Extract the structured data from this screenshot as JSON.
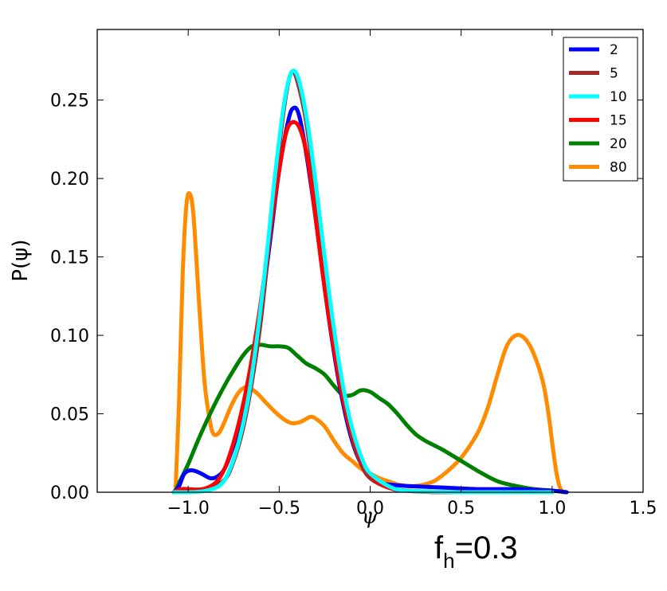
{
  "chart_data": {
    "type": "line",
    "xlabel": "ψ",
    "ylabel": "P(ψ)",
    "xlim": [
      -1.5,
      1.5
    ],
    "ylim": [
      0.0,
      0.295
    ],
    "xticks": [
      -1.0,
      -0.5,
      0.0,
      0.5,
      1.0,
      1.5
    ],
    "xtick_labels": [
      "−1.0",
      "−0.5",
      "0.0",
      "0.5",
      "1.0",
      "1.5"
    ],
    "yticks": [
      0.0,
      0.05,
      0.1,
      0.15,
      0.2,
      0.25
    ],
    "ytick_labels": [
      "0.00",
      "0.05",
      "0.10",
      "0.15",
      "0.20",
      "0.25"
    ],
    "grid": false,
    "legend_position": "top-right",
    "annotation": {
      "main": "f",
      "sub": "h",
      "rest": "=0.3"
    },
    "series": [
      {
        "name": "2",
        "color": "#0000ff",
        "points": [
          [
            -1.08,
            0.0
          ],
          [
            -1.05,
            0.004
          ],
          [
            -1.02,
            0.012
          ],
          [
            -0.98,
            0.014
          ],
          [
            -0.93,
            0.012
          ],
          [
            -0.88,
            0.009
          ],
          [
            -0.84,
            0.01
          ],
          [
            -0.8,
            0.015
          ],
          [
            -0.75,
            0.03
          ],
          [
            -0.7,
            0.05
          ],
          [
            -0.65,
            0.08
          ],
          [
            -0.6,
            0.115
          ],
          [
            -0.55,
            0.16
          ],
          [
            -0.5,
            0.205
          ],
          [
            -0.45,
            0.237
          ],
          [
            -0.42,
            0.245
          ],
          [
            -0.39,
            0.24
          ],
          [
            -0.35,
            0.215
          ],
          [
            -0.3,
            0.175
          ],
          [
            -0.25,
            0.13
          ],
          [
            -0.2,
            0.09
          ],
          [
            -0.15,
            0.057
          ],
          [
            -0.1,
            0.033
          ],
          [
            -0.05,
            0.018
          ],
          [
            0.0,
            0.01
          ],
          [
            0.05,
            0.006
          ],
          [
            0.1,
            0.005
          ],
          [
            0.2,
            0.004
          ],
          [
            0.4,
            0.003
          ],
          [
            0.6,
            0.002
          ],
          [
            0.8,
            0.002
          ],
          [
            1.0,
            0.001
          ],
          [
            1.08,
            0.0
          ]
        ]
      },
      {
        "name": "5",
        "color": "#a52a2a",
        "points": [
          [
            -1.08,
            0.0
          ],
          [
            -1.0,
            0.0
          ],
          [
            -0.9,
            0.002
          ],
          [
            -0.8,
            0.008
          ],
          [
            -0.75,
            0.02
          ],
          [
            -0.7,
            0.04
          ],
          [
            -0.65,
            0.07
          ],
          [
            -0.6,
            0.11
          ],
          [
            -0.55,
            0.165
          ],
          [
            -0.5,
            0.22
          ],
          [
            -0.46,
            0.255
          ],
          [
            -0.43,
            0.268
          ],
          [
            -0.4,
            0.262
          ],
          [
            -0.35,
            0.235
          ],
          [
            -0.3,
            0.19
          ],
          [
            -0.25,
            0.14
          ],
          [
            -0.2,
            0.095
          ],
          [
            -0.15,
            0.06
          ],
          [
            -0.1,
            0.035
          ],
          [
            -0.05,
            0.018
          ],
          [
            0.0,
            0.009
          ],
          [
            0.1,
            0.003
          ],
          [
            0.2,
            0.001
          ],
          [
            0.5,
            0.0
          ],
          [
            1.0,
            0.0
          ]
        ]
      },
      {
        "name": "10",
        "color": "#00ffff",
        "points": [
          [
            -1.08,
            0.0
          ],
          [
            -1.0,
            0.0
          ],
          [
            -0.9,
            0.001
          ],
          [
            -0.82,
            0.005
          ],
          [
            -0.77,
            0.015
          ],
          [
            -0.72,
            0.033
          ],
          [
            -0.67,
            0.06
          ],
          [
            -0.62,
            0.1
          ],
          [
            -0.57,
            0.15
          ],
          [
            -0.52,
            0.205
          ],
          [
            -0.47,
            0.25
          ],
          [
            -0.43,
            0.268
          ],
          [
            -0.39,
            0.262
          ],
          [
            -0.34,
            0.232
          ],
          [
            -0.29,
            0.188
          ],
          [
            -0.24,
            0.14
          ],
          [
            -0.19,
            0.097
          ],
          [
            -0.14,
            0.062
          ],
          [
            -0.09,
            0.037
          ],
          [
            -0.04,
            0.02
          ],
          [
            0.0,
            0.012
          ],
          [
            0.1,
            0.004
          ],
          [
            0.2,
            0.001
          ],
          [
            0.5,
            0.0
          ],
          [
            1.0,
            0.0
          ]
        ]
      },
      {
        "name": "15",
        "color": "#ff0000",
        "points": [
          [
            -1.08,
            0.0
          ],
          [
            -1.04,
            0.002
          ],
          [
            -1.0,
            0.002
          ],
          [
            -0.92,
            0.002
          ],
          [
            -0.85,
            0.006
          ],
          [
            -0.8,
            0.015
          ],
          [
            -0.75,
            0.032
          ],
          [
            -0.7,
            0.055
          ],
          [
            -0.65,
            0.085
          ],
          [
            -0.6,
            0.122
          ],
          [
            -0.55,
            0.165
          ],
          [
            -0.5,
            0.205
          ],
          [
            -0.46,
            0.23
          ],
          [
            -0.42,
            0.236
          ],
          [
            -0.38,
            0.23
          ],
          [
            -0.34,
            0.21
          ],
          [
            -0.3,
            0.175
          ],
          [
            -0.25,
            0.13
          ],
          [
            -0.2,
            0.092
          ],
          [
            -0.15,
            0.06
          ],
          [
            -0.1,
            0.037
          ],
          [
            -0.05,
            0.021
          ],
          [
            0.0,
            0.011
          ],
          [
            0.05,
            0.006
          ],
          [
            0.1,
            0.003
          ],
          [
            0.2,
            0.001
          ],
          [
            0.4,
            0.0
          ],
          [
            1.0,
            0.0
          ]
        ]
      },
      {
        "name": "20",
        "color": "#008000",
        "points": [
          [
            -1.07,
            0.0
          ],
          [
            -1.05,
            0.006
          ],
          [
            -1.0,
            0.018
          ],
          [
            -0.95,
            0.032
          ],
          [
            -0.9,
            0.045
          ],
          [
            -0.85,
            0.057
          ],
          [
            -0.8,
            0.068
          ],
          [
            -0.75,
            0.078
          ],
          [
            -0.7,
            0.087
          ],
          [
            -0.65,
            0.093
          ],
          [
            -0.6,
            0.094
          ],
          [
            -0.55,
            0.093
          ],
          [
            -0.5,
            0.093
          ],
          [
            -0.45,
            0.092
          ],
          [
            -0.4,
            0.087
          ],
          [
            -0.35,
            0.082
          ],
          [
            -0.3,
            0.079
          ],
          [
            -0.25,
            0.075
          ],
          [
            -0.2,
            0.068
          ],
          [
            -0.15,
            0.062
          ],
          [
            -0.1,
            0.062
          ],
          [
            -0.05,
            0.065
          ],
          [
            0.0,
            0.064
          ],
          [
            0.05,
            0.06
          ],
          [
            0.1,
            0.056
          ],
          [
            0.15,
            0.05
          ],
          [
            0.2,
            0.043
          ],
          [
            0.25,
            0.037
          ],
          [
            0.3,
            0.033
          ],
          [
            0.35,
            0.03
          ],
          [
            0.4,
            0.027
          ],
          [
            0.5,
            0.02
          ],
          [
            0.6,
            0.013
          ],
          [
            0.7,
            0.007
          ],
          [
            0.8,
            0.004
          ],
          [
            0.9,
            0.002
          ],
          [
            1.0,
            0.001
          ],
          [
            1.08,
            0.0
          ]
        ]
      },
      {
        "name": "80",
        "color": "#ff8c00",
        "points": [
          [
            -1.07,
            0.0
          ],
          [
            -1.05,
            0.06
          ],
          [
            -1.03,
            0.14
          ],
          [
            -1.01,
            0.183
          ],
          [
            -0.99,
            0.19
          ],
          [
            -0.97,
            0.175
          ],
          [
            -0.94,
            0.12
          ],
          [
            -0.91,
            0.07
          ],
          [
            -0.88,
            0.045
          ],
          [
            -0.86,
            0.037
          ],
          [
            -0.83,
            0.038
          ],
          [
            -0.8,
            0.045
          ],
          [
            -0.76,
            0.056
          ],
          [
            -0.72,
            0.064
          ],
          [
            -0.68,
            0.067
          ],
          [
            -0.63,
            0.064
          ],
          [
            -0.58,
            0.058
          ],
          [
            -0.53,
            0.052
          ],
          [
            -0.48,
            0.047
          ],
          [
            -0.43,
            0.044
          ],
          [
            -0.38,
            0.045
          ],
          [
            -0.33,
            0.048
          ],
          [
            -0.3,
            0.047
          ],
          [
            -0.25,
            0.042
          ],
          [
            -0.2,
            0.033
          ],
          [
            -0.15,
            0.025
          ],
          [
            -0.1,
            0.02
          ],
          [
            -0.05,
            0.015
          ],
          [
            0.0,
            0.012
          ],
          [
            0.05,
            0.009
          ],
          [
            0.1,
            0.007
          ],
          [
            0.15,
            0.005
          ],
          [
            0.2,
            0.004
          ],
          [
            0.25,
            0.004
          ],
          [
            0.3,
            0.005
          ],
          [
            0.35,
            0.007
          ],
          [
            0.4,
            0.011
          ],
          [
            0.45,
            0.016
          ],
          [
            0.5,
            0.022
          ],
          [
            0.55,
            0.03
          ],
          [
            0.6,
            0.04
          ],
          [
            0.65,
            0.055
          ],
          [
            0.7,
            0.075
          ],
          [
            0.75,
            0.093
          ],
          [
            0.8,
            0.1
          ],
          [
            0.85,
            0.098
          ],
          [
            0.9,
            0.088
          ],
          [
            0.95,
            0.07
          ],
          [
            0.98,
            0.05
          ],
          [
            1.0,
            0.032
          ],
          [
            1.02,
            0.015
          ],
          [
            1.04,
            0.004
          ],
          [
            1.06,
            0.0
          ]
        ]
      }
    ]
  }
}
